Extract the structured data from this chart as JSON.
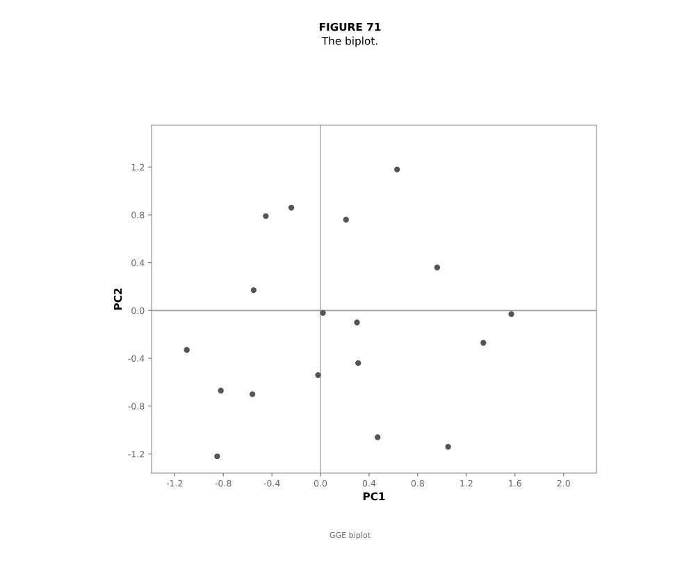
{
  "chart_data": {
    "type": "scatter",
    "title": "FIGURE 71",
    "subtitle": "The biplot.",
    "xlabel": "PC1",
    "ylabel": "PC2",
    "annotations": [
      "GGE biplot"
    ],
    "x": [
      0.63,
      -0.45,
      -0.24,
      0.21,
      0.96,
      -0.55,
      0.02,
      0.3,
      1.57,
      1.34,
      -1.1,
      0.31,
      -0.02,
      -0.82,
      -0.56,
      0.47,
      1.05,
      -0.85
    ],
    "values": [
      1.18,
      0.79,
      0.86,
      0.76,
      0.36,
      0.17,
      -0.02,
      -0.1,
      -0.03,
      -0.27,
      -0.33,
      -0.44,
      -0.54,
      -0.67,
      -0.7,
      -1.06,
      -1.14,
      -1.22
    ],
    "color": "#555555",
    "marker": "circle",
    "xlim": [
      -1.39,
      2.27
    ],
    "ylim": [
      -1.36,
      1.55
    ],
    "xticks": [
      -1.2,
      -0.8,
      -0.4,
      {
        "value": 0,
        "label": "0.0"
      },
      0.4,
      0.8,
      1.2,
      1.6,
      {
        "value": 2,
        "label": "2.0"
      }
    ],
    "yticks": [
      -1.2,
      -0.8,
      -0.4,
      {
        "value": 0,
        "label": "0.0"
      },
      0.4,
      0.8,
      1.2
    ],
    "ref_lines": [
      {
        "axis": "x",
        "value": 0,
        "color": "#b4b4b4"
      },
      {
        "axis": "y",
        "value": 0,
        "color": "#999999"
      }
    ],
    "grid": false
  }
}
